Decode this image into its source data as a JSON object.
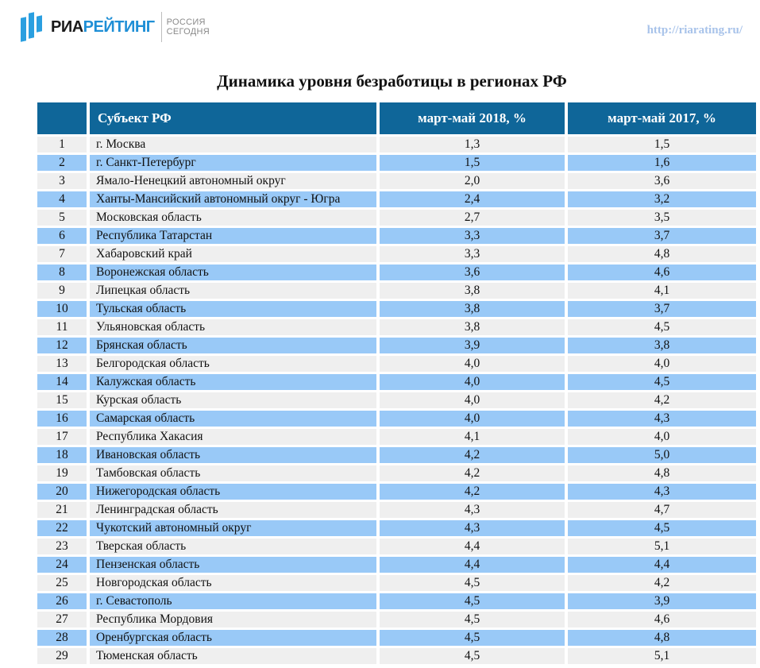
{
  "header": {
    "logo": {
      "brand_dark": "РИА",
      "brand_blue": "РЕЙТИНГ",
      "sub_line1": "РОССИЯ",
      "sub_line2": "СЕГОДНЯ"
    },
    "url": "http://riarating.ru/"
  },
  "title": "Динамика уровня безработицы в регионах РФ",
  "colors": {
    "header_bg": "#0f6699",
    "row_odd": "#efefef",
    "row_even": "#99c9f7",
    "url": "#a8c3ea",
    "logo_blue": "#2a9fe0"
  },
  "table": {
    "columns": [
      "",
      "Субъект РФ",
      "март-май 2018, %",
      "март-май 2017, %"
    ],
    "rows": [
      {
        "n": "1",
        "region": "г. Москва",
        "y2018": "1,3",
        "y2017": "1,5"
      },
      {
        "n": "2",
        "region": "г. Санкт-Петербург",
        "y2018": "1,5",
        "y2017": "1,6"
      },
      {
        "n": "3",
        "region": "Ямало-Ненецкий автономный округ",
        "y2018": "2,0",
        "y2017": "3,6"
      },
      {
        "n": "4",
        "region": "Ханты-Мансийский автономный округ - Югра",
        "y2018": "2,4",
        "y2017": "3,2"
      },
      {
        "n": "5",
        "region": "Московская область",
        "y2018": "2,7",
        "y2017": "3,5"
      },
      {
        "n": "6",
        "region": "Республика Татарстан",
        "y2018": "3,3",
        "y2017": "3,7"
      },
      {
        "n": "7",
        "region": "Хабаровский край",
        "y2018": "3,3",
        "y2017": "4,8"
      },
      {
        "n": "8",
        "region": "Воронежская область",
        "y2018": "3,6",
        "y2017": "4,6"
      },
      {
        "n": "9",
        "region": "Липецкая область",
        "y2018": "3,8",
        "y2017": "4,1"
      },
      {
        "n": "10",
        "region": "Тульская область",
        "y2018": "3,8",
        "y2017": "3,7"
      },
      {
        "n": "11",
        "region": "Ульяновская область",
        "y2018": "3,8",
        "y2017": "4,5"
      },
      {
        "n": "12",
        "region": "Брянская область",
        "y2018": "3,9",
        "y2017": "3,8"
      },
      {
        "n": "13",
        "region": "Белгородская область",
        "y2018": "4,0",
        "y2017": "4,0"
      },
      {
        "n": "14",
        "region": "Калужская область",
        "y2018": "4,0",
        "y2017": "4,5"
      },
      {
        "n": "15",
        "region": "Курская область",
        "y2018": "4,0",
        "y2017": "4,2"
      },
      {
        "n": "16",
        "region": "Самарская область",
        "y2018": "4,0",
        "y2017": "4,3"
      },
      {
        "n": "17",
        "region": "Республика Хакасия",
        "y2018": "4,1",
        "y2017": "4,0"
      },
      {
        "n": "18",
        "region": "Ивановская область",
        "y2018": "4,2",
        "y2017": "5,0"
      },
      {
        "n": "19",
        "region": "Тамбовская область",
        "y2018": "4,2",
        "y2017": "4,8"
      },
      {
        "n": "20",
        "region": "Нижегородская область",
        "y2018": "4,2",
        "y2017": "4,3"
      },
      {
        "n": "21",
        "region": "Ленинградская область",
        "y2018": "4,3",
        "y2017": "4,7"
      },
      {
        "n": "22",
        "region": "Чукотский автономный округ",
        "y2018": "4,3",
        "y2017": "4,5"
      },
      {
        "n": "23",
        "region": "Тверская область",
        "y2018": "4,4",
        "y2017": "5,1"
      },
      {
        "n": "24",
        "region": "Пензенская область",
        "y2018": "4,4",
        "y2017": "4,4"
      },
      {
        "n": "25",
        "region": "Новгородская область",
        "y2018": "4,5",
        "y2017": "4,2"
      },
      {
        "n": "26",
        "region": "г. Севастополь",
        "y2018": "4,5",
        "y2017": "3,9"
      },
      {
        "n": "27",
        "region": "Республика Мордовия",
        "y2018": "4,5",
        "y2017": "4,6"
      },
      {
        "n": "28",
        "region": "Оренбургская область",
        "y2018": "4,5",
        "y2017": "4,8"
      },
      {
        "n": "29",
        "region": "Тюменская область",
        "y2018": "4,5",
        "y2017": "5,1"
      }
    ]
  }
}
